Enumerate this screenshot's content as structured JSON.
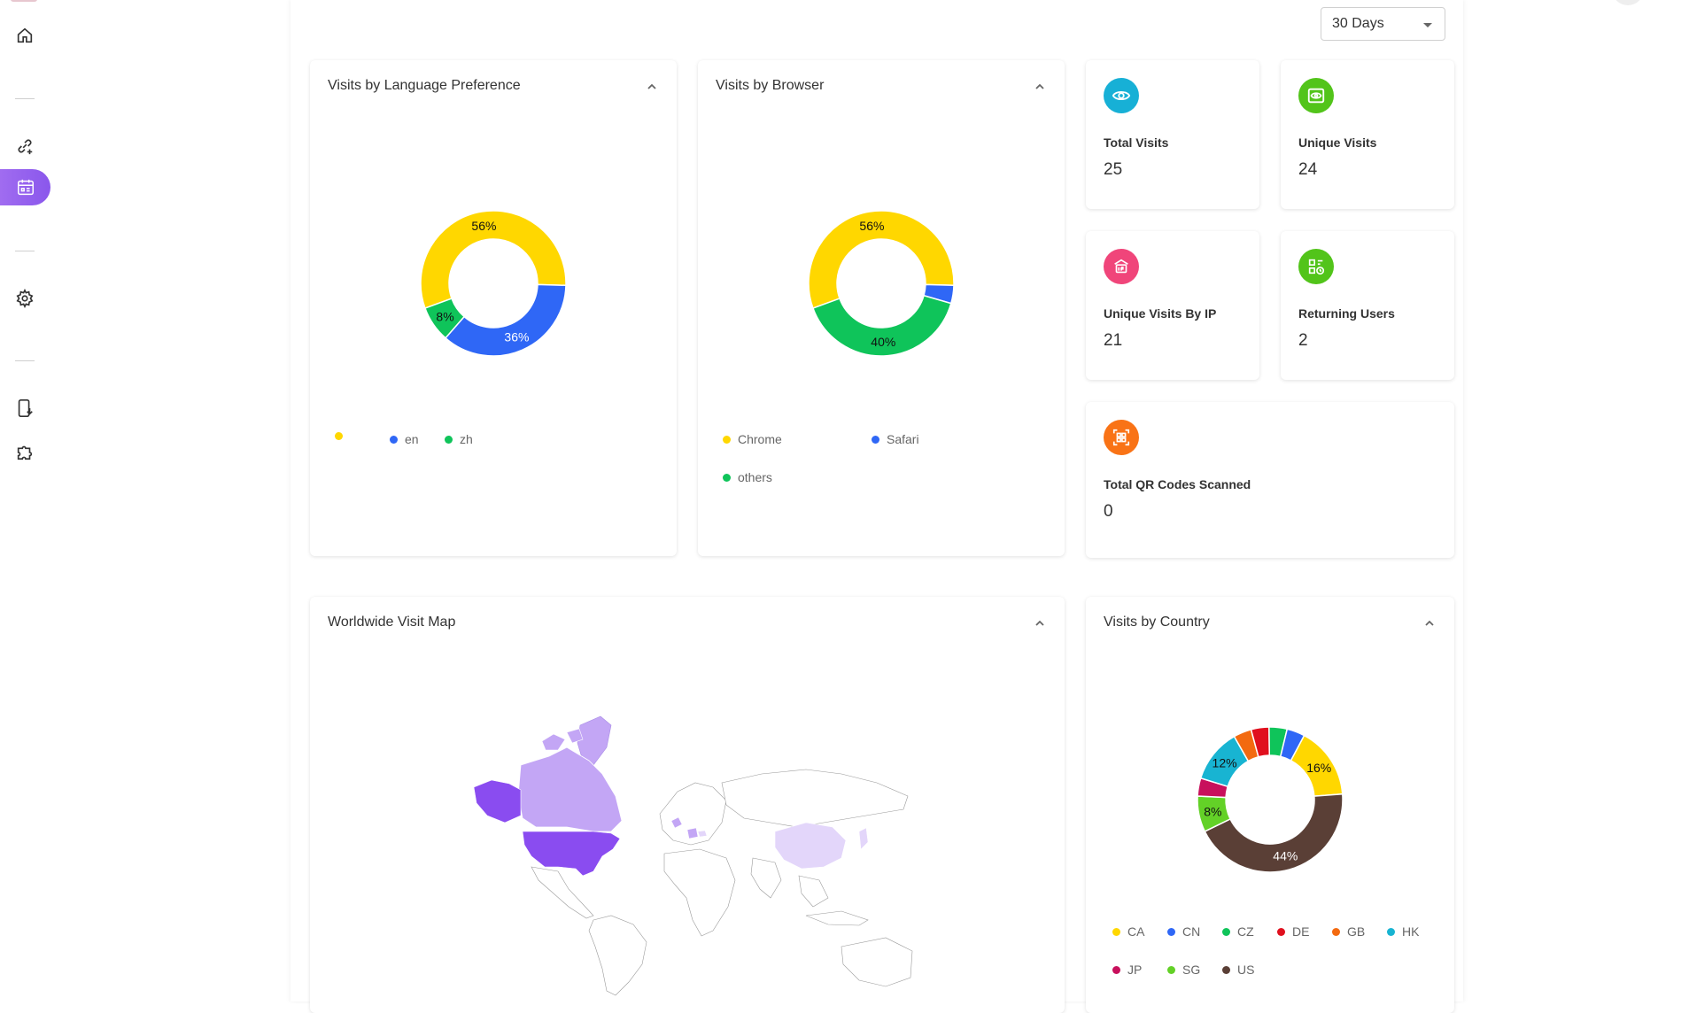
{
  "filters": {
    "range": "30 Days"
  },
  "sidebar": {
    "items": [
      {
        "icon": "home-icon"
      },
      {
        "icon": "link-add-icon"
      },
      {
        "icon": "qr-calendar-icon",
        "active": true
      },
      {
        "icon": "gear-icon"
      },
      {
        "icon": "mobile-download-icon"
      },
      {
        "icon": "puzzle-icon"
      }
    ]
  },
  "language_card": {
    "title": "Visits by Language Preference",
    "legend": [
      "",
      "en",
      "zh"
    ],
    "chart_data": {
      "type": "pie",
      "categories": [
        "",
        "en",
        "zh"
      ],
      "values": [
        56,
        36,
        8
      ],
      "labels": [
        "56%",
        "36%",
        "8%"
      ],
      "colors": [
        "#ffd700",
        "#2f67f6",
        "#0fc45a"
      ]
    }
  },
  "browser_card": {
    "title": "Visits by Browser",
    "legend": [
      "Chrome",
      "Safari",
      "others"
    ],
    "chart_data": {
      "type": "pie",
      "categories": [
        "Chrome",
        "Safari",
        "others"
      ],
      "values": [
        56,
        4,
        40
      ],
      "labels": [
        "56%",
        "",
        "40%"
      ],
      "colors": [
        "#ffd700",
        "#2f67f6",
        "#0fc45a"
      ]
    }
  },
  "stats": {
    "total_visits": {
      "label": "Total Visits",
      "value": "25",
      "color": "#17b0d6",
      "icon": "eye-icon"
    },
    "unique_visits": {
      "label": "Unique Visits",
      "value": "24",
      "color": "#52c41a",
      "icon": "eye-frame-icon"
    },
    "unique_ip": {
      "label": "Unique Visits By IP",
      "value": "21",
      "color": "#f0457a",
      "icon": "ip-icon"
    },
    "returning": {
      "label": "Returning Users",
      "value": "2",
      "color": "#52c41a",
      "icon": "returning-user-icon"
    },
    "qr_scanned": {
      "label": "Total QR Codes Scanned",
      "value": "0",
      "color": "#f97316",
      "icon": "qr-code-icon"
    }
  },
  "map_card": {
    "title": "Worldwide Visit Map",
    "colors": {
      "high": "#8a4cf0",
      "mid": "#c3a6f5",
      "low": "#e3d6fa"
    }
  },
  "country_card": {
    "title": "Visits by Country",
    "legend": [
      "CA",
      "CN",
      "CZ",
      "DE",
      "GB",
      "HK",
      "JP",
      "SG",
      "US"
    ],
    "chart_data": {
      "type": "pie",
      "categories": [
        "CA",
        "US",
        "SG",
        "JP",
        "HK",
        "GB",
        "DE",
        "CZ",
        "CN"
      ],
      "values": [
        16,
        44,
        8,
        4,
        12,
        4,
        4,
        4,
        4
      ],
      "labels": [
        "16%",
        "44%",
        "8%",
        "",
        "12%",
        "",
        "",
        "",
        ""
      ],
      "colors": [
        "#ffd700",
        "#5a3f36",
        "#63d127",
        "#c8105c",
        "#18b4d2",
        "#f36a10",
        "#e0101e",
        "#0fc45a",
        "#2f67f6"
      ]
    },
    "legend_colors": [
      "#ffd700",
      "#2f67f6",
      "#0fc45a",
      "#e0101e",
      "#f36a10",
      "#18b4d2",
      "#c8105c",
      "#63d127",
      "#5a3f36"
    ]
  }
}
